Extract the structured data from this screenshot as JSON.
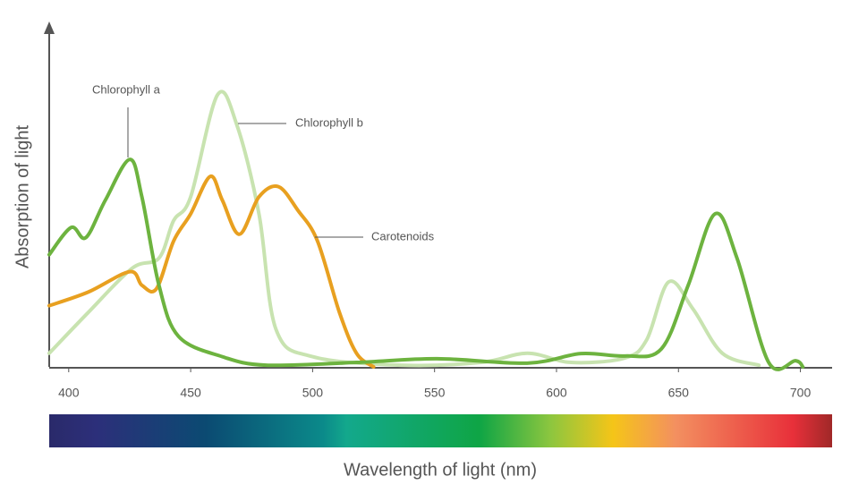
{
  "chart_data": {
    "type": "line",
    "x_label": "Wavelength of light (nm)",
    "y_label": "Absorption of light",
    "xlim": [
      392,
      713
    ],
    "ylim": [
      0,
      100
    ],
    "xticks": [
      400,
      450,
      500,
      550,
      600,
      650,
      700
    ],
    "series": [
      {
        "name": "Chlorophyll a",
        "color": "#6db33f",
        "x": [
          392,
          401,
          407,
          415,
          425,
          430,
          437,
          445,
          463,
          481,
          518,
          551,
          588,
          610,
          628,
          643,
          654,
          665,
          674,
          687,
          698,
          701
        ],
        "values": [
          33,
          41,
          38,
          49,
          61,
          50,
          24,
          9,
          3,
          0.5,
          1.3,
          2.4,
          1.1,
          3.9,
          3.2,
          5.3,
          24,
          45,
          32,
          1.3,
          1.8,
          0
        ]
      },
      {
        "name": "Chlorophyll b",
        "color": "#c8e3b0",
        "x": [
          392,
          408,
          426,
          437,
          443,
          450,
          461,
          469,
          478,
          485,
          500,
          536,
          569,
          588,
          606,
          628,
          637,
          646,
          656,
          668,
          683
        ],
        "values": [
          4,
          16,
          29,
          32,
          43,
          50,
          80,
          71,
          45,
          11,
          3,
          0.5,
          1.3,
          4,
          1.3,
          2.6,
          8,
          25,
          17,
          4,
          0.5
        ]
      },
      {
        "name": "Carotenoids",
        "color": "#e8a020",
        "x": [
          392,
          408,
          425,
          430,
          436,
          443,
          450,
          458,
          463,
          470,
          478,
          486,
          494,
          502,
          511,
          518,
          525
        ],
        "values": [
          18,
          22,
          28,
          24,
          23,
          37,
          45,
          56,
          49,
          39,
          50,
          53,
          46,
          37,
          16,
          4,
          0
        ]
      }
    ]
  }
}
